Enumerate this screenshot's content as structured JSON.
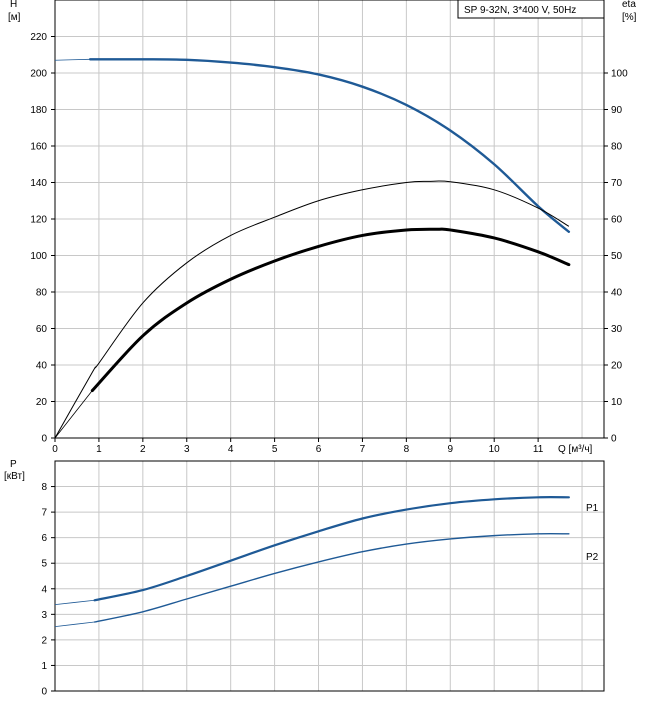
{
  "chart_data": [
    {
      "type": "line",
      "title": "SP 9-32N, 3*400 V, 50Hz",
      "xlabel": "Q [м³/ч]",
      "ylabel_left": [
        "H",
        "[м]"
      ],
      "ylabel_right": [
        "eta",
        "[%]"
      ],
      "xlim": [
        0,
        12.5
      ],
      "ylim_left": [
        0,
        240
      ],
      "ylim_right": [
        0,
        120
      ],
      "x_ticks": [
        "0",
        "1",
        "2",
        "3",
        "4",
        "5",
        "6",
        "7",
        "8",
        "9",
        "10",
        "11"
      ],
      "y_ticks_left": [
        "0",
        "20",
        "40",
        "60",
        "80",
        "100",
        "120",
        "140",
        "160",
        "180",
        "200",
        "220"
      ],
      "y_ticks_right": [
        "0",
        "10",
        "20",
        "30",
        "40",
        "50",
        "60",
        "70",
        "80",
        "90",
        "100"
      ],
      "grid": true,
      "series": [
        {
          "axis": "left",
          "color": "#1f5a96",
          "thin_start_x": 0.8,
          "x": [
            0,
            0.8,
            2,
            3,
            4,
            5,
            6,
            7,
            8,
            9,
            10,
            11,
            11.7
          ],
          "y": [
            207,
            207.5,
            207.5,
            207.2,
            205.7,
            203.2,
            199.2,
            192.5,
            182.5,
            168.5,
            150,
            127,
            113
          ]
        },
        {
          "axis": "right",
          "color": "#000000",
          "width": 1,
          "x": [
            0,
            0.85,
            1,
            2,
            3,
            4,
            5,
            6,
            7,
            8,
            8.5,
            9,
            10,
            11,
            11.7
          ],
          "y": [
            0,
            18,
            20.5,
            37,
            48,
            55.5,
            60.5,
            65,
            68,
            70,
            70.3,
            70.2,
            68,
            63,
            58
          ]
        },
        {
          "axis": "right",
          "color": "#000000",
          "width": 3,
          "thin_start_x": 0.85,
          "x": [
            0,
            0.85,
            2,
            3,
            4,
            5,
            6,
            7,
            8,
            8.7,
            9,
            10,
            11,
            11.7
          ],
          "y": [
            0,
            13,
            28,
            37,
            43.5,
            48.5,
            52.5,
            55.5,
            57,
            57.2,
            57,
            54.8,
            51,
            47.5
          ]
        }
      ]
    },
    {
      "type": "line",
      "ylabel": [
        "P",
        "[кВт]"
      ],
      "xlim": [
        0,
        12.5
      ],
      "ylim": [
        0,
        9
      ],
      "y_ticks": [
        "0",
        "1",
        "2",
        "3",
        "4",
        "5",
        "6",
        "7",
        "8"
      ],
      "grid": true,
      "series": [
        {
          "name": "P1",
          "color": "#1f5a96",
          "width": 2.2,
          "thin_start_x": 0.9,
          "x": [
            0,
            0.9,
            2,
            3,
            4,
            5,
            6,
            7,
            8,
            9,
            10,
            11,
            11.7
          ],
          "y": [
            3.38,
            3.55,
            3.95,
            4.5,
            5.1,
            5.7,
            6.25,
            6.75,
            7.1,
            7.35,
            7.5,
            7.58,
            7.58
          ]
        },
        {
          "name": "P2",
          "color": "#1f5a96",
          "width": 1.4,
          "thin_start_x": 0.9,
          "x": [
            0,
            0.9,
            2,
            3,
            4,
            5,
            6,
            7,
            8,
            9,
            10,
            11,
            11.7
          ],
          "y": [
            2.52,
            2.7,
            3.1,
            3.6,
            4.1,
            4.6,
            5.05,
            5.45,
            5.75,
            5.95,
            6.08,
            6.15,
            6.15
          ]
        }
      ]
    }
  ]
}
